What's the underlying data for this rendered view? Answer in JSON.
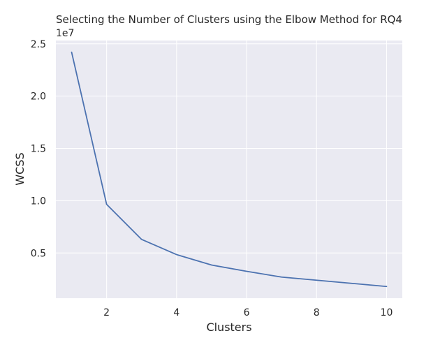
{
  "chart_data": {
    "type": "line",
    "title": "Selecting the Number of Clusters using the Elbow Method for RQ4",
    "xlabel": "Clusters",
    "ylabel": "WCSS",
    "y_scale_label": "1e7",
    "x": [
      1,
      2,
      3,
      4,
      5,
      6,
      7,
      8,
      9,
      10
    ],
    "series": [
      {
        "values": [
          24200000,
          9650000,
          6300000,
          4850000,
          3850000,
          3250000,
          2700000,
          2400000,
          2100000,
          1800000
        ],
        "color": "#4c72b0"
      }
    ],
    "xlim": [
      0.55,
      10.45
    ],
    "ylim": [
      680000,
      25320000
    ],
    "xticks": [
      2,
      4,
      6,
      8,
      10
    ],
    "xtick_labels": [
      "2",
      "4",
      "6",
      "8",
      "10"
    ],
    "yticks": [
      5000000,
      10000000,
      15000000,
      20000000,
      25000000
    ],
    "ytick_labels": [
      "0.5",
      "1.0",
      "1.5",
      "2.0",
      "2.5"
    ],
    "grid": true,
    "background_color": "#eaeaf2",
    "grid_color": "#ffffff"
  }
}
